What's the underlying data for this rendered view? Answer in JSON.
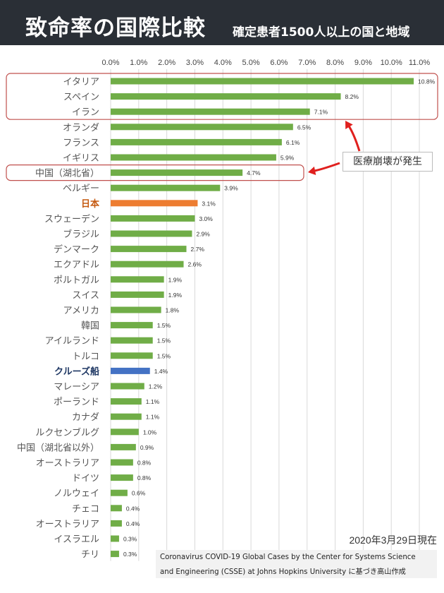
{
  "header": {
    "title": "致命率の国際比較",
    "subtitle": "確定患者1500人以上の国と地域"
  },
  "annotation": {
    "label": "医療崩壊が発生"
  },
  "footer": {
    "date": "2020年3月29日現在",
    "source_line1": "Coronavirus COVID-19 Global Cases by the Center for Systems Science",
    "source_line2": "and Engineering (CSSE) at Johns Hopkins University に基づき高山作成"
  },
  "colors": {
    "header_bg": "#2a2f36",
    "default_bar": "#70ad47",
    "japan_bar": "#ed7d31",
    "japan_label": "#c55a11",
    "cruise_bar": "#4472c4",
    "cruise_label": "#1f3864",
    "highlight_box": "#c0504d",
    "arrow": "#e0201e"
  },
  "chart_data": {
    "type": "bar",
    "orientation": "horizontal",
    "xlim": [
      0,
      11
    ],
    "x_ticks": [
      "0.0%",
      "1.0%",
      "2.0%",
      "3.0%",
      "4.0%",
      "5.0%",
      "6.0%",
      "7.0%",
      "8.0%",
      "9.0%",
      "10.0%",
      "11.0%"
    ],
    "grid": true,
    "categories": [
      "イタリア",
      "スペイン",
      "イラン",
      "オランダ",
      "フランス",
      "イギリス",
      "中国（湖北省）",
      "ベルギー",
      "日本",
      "スウェーデン",
      "ブラジル",
      "デンマーク",
      "エクアドル",
      "ポルトガル",
      "スイス",
      "アメリカ",
      "韓国",
      "アイルランド",
      "トルコ",
      "クルーズ船",
      "マレーシア",
      "ポーランド",
      "カナダ",
      "ルクセンブルグ",
      "中国（湖北省以外）",
      "オーストラリア",
      "ドイツ",
      "ノルウェイ",
      "チェコ",
      "オーストラリア",
      "イスラエル",
      "チリ"
    ],
    "values": [
      10.8,
      8.2,
      7.1,
      6.5,
      6.1,
      5.9,
      4.7,
      3.9,
      3.1,
      3.0,
      2.9,
      2.7,
      2.6,
      1.9,
      1.9,
      1.8,
      1.5,
      1.5,
      1.5,
      1.4,
      1.2,
      1.1,
      1.1,
      1.0,
      0.9,
      0.8,
      0.8,
      0.6,
      0.4,
      0.4,
      0.3,
      0.3
    ],
    "value_labels": [
      "10.8%",
      "8.2%",
      "7.1%",
      "6.5%",
      "6.1%",
      "5.9%",
      "4.7%",
      "3.9%",
      "3.1%",
      "3.0%",
      "2.9%",
      "2.7%",
      "2.6%",
      "1.9%",
      "1.9%",
      "1.8%",
      "1.5%",
      "1.5%",
      "1.5%",
      "1.4%",
      "1.2%",
      "1.1%",
      "1.1%",
      "1.0%",
      "0.9%",
      "0.8%",
      "0.8%",
      "0.6%",
      "0.4%",
      "0.4%",
      "0.3%",
      "0.3%"
    ],
    "highlighted": {
      "日本": "japan",
      "クルーズ船": "cruise"
    },
    "boxed_groups": [
      [
        "イタリア",
        "スペイン",
        "イラン"
      ],
      [
        "中国（湖北省）"
      ]
    ]
  }
}
